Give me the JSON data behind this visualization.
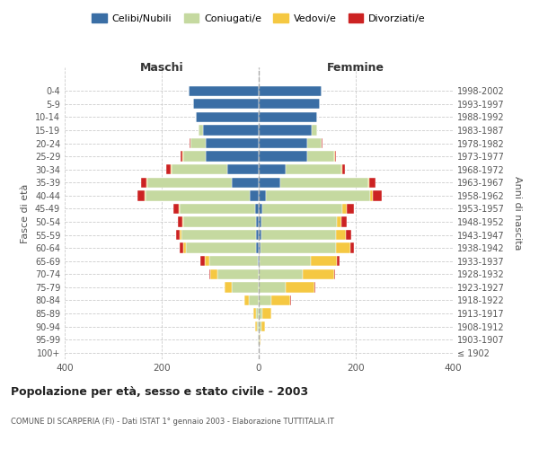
{
  "age_groups": [
    "100+",
    "95-99",
    "90-94",
    "85-89",
    "80-84",
    "75-79",
    "70-74",
    "65-69",
    "60-64",
    "55-59",
    "50-54",
    "45-49",
    "40-44",
    "35-39",
    "30-34",
    "25-29",
    "20-24",
    "15-19",
    "10-14",
    "5-9",
    "0-4"
  ],
  "birth_years": [
    "≤ 1902",
    "1903-1907",
    "1908-1912",
    "1913-1917",
    "1918-1922",
    "1923-1927",
    "1928-1932",
    "1933-1937",
    "1938-1942",
    "1943-1947",
    "1948-1952",
    "1953-1957",
    "1958-1962",
    "1963-1967",
    "1968-1972",
    "1973-1977",
    "1978-1982",
    "1983-1987",
    "1988-1992",
    "1993-1997",
    "1998-2002"
  ],
  "males": {
    "celibi": [
      0,
      0,
      0,
      0,
      0,
      0,
      0,
      2,
      5,
      5,
      6,
      8,
      18,
      55,
      65,
      110,
      110,
      115,
      130,
      135,
      145
    ],
    "coniugati": [
      0,
      2,
      4,
      6,
      20,
      55,
      85,
      100,
      145,
      155,
      150,
      155,
      215,
      175,
      115,
      45,
      30,
      10,
      0,
      0,
      0
    ],
    "vedovi": [
      0,
      0,
      3,
      5,
      10,
      15,
      15,
      10,
      5,
      3,
      2,
      2,
      2,
      2,
      2,
      2,
      0,
      0,
      0,
      0,
      0
    ],
    "divorziati": [
      0,
      0,
      0,
      0,
      0,
      0,
      2,
      8,
      8,
      8,
      8,
      10,
      15,
      10,
      8,
      5,
      2,
      0,
      0,
      0,
      0
    ]
  },
  "females": {
    "nubili": [
      0,
      0,
      0,
      0,
      0,
      0,
      0,
      2,
      4,
      5,
      6,
      8,
      15,
      45,
      55,
      100,
      100,
      110,
      120,
      125,
      130
    ],
    "coniugate": [
      0,
      2,
      5,
      8,
      25,
      55,
      90,
      105,
      155,
      155,
      155,
      165,
      215,
      180,
      115,
      55,
      30,
      10,
      0,
      0,
      0
    ],
    "vedove": [
      0,
      2,
      8,
      18,
      40,
      60,
      65,
      55,
      30,
      20,
      10,
      8,
      5,
      3,
      2,
      2,
      0,
      0,
      0,
      0,
      0
    ],
    "divorziate": [
      0,
      0,
      0,
      0,
      2,
      2,
      2,
      5,
      8,
      10,
      10,
      15,
      18,
      12,
      5,
      3,
      2,
      0,
      0,
      0,
      0
    ]
  },
  "colors": {
    "celibi": "#3a6ea5",
    "coniugati": "#c5d9a0",
    "vedovi": "#f5c842",
    "divorziati": "#cc2222"
  },
  "xlim": [
    -400,
    400
  ],
  "xticks": [
    -400,
    -200,
    0,
    200,
    400
  ],
  "xticklabels": [
    "400",
    "200",
    "0",
    "200",
    "400"
  ],
  "title": "Popolazione per età, sesso e stato civile - 2003",
  "subtitle": "COMUNE DI SCARPERIA (FI) - Dati ISTAT 1° gennaio 2003 - Elaborazione TUTTITALIA.IT",
  "ylabel_left": "Fasce di età",
  "ylabel_right": "Anni di nascita",
  "label_maschi": "Maschi",
  "label_femmine": "Femmine",
  "legend_labels": [
    "Celibi/Nubili",
    "Coniugati/e",
    "Vedovi/e",
    "Divorziati/e"
  ],
  "background_color": "#ffffff",
  "grid_color": "#cccccc"
}
